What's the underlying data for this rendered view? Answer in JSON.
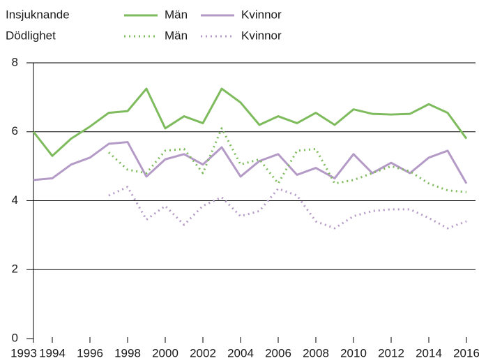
{
  "chart_data": {
    "type": "line",
    "legend_groups": [
      "Insjuknande",
      "Dödlighet"
    ],
    "x": [
      1993,
      1994,
      1995,
      1996,
      1997,
      1998,
      1999,
      2000,
      2001,
      2002,
      2003,
      2004,
      2005,
      2006,
      2007,
      2008,
      2009,
      2010,
      2011,
      2012,
      2013,
      2014,
      2015,
      2016
    ],
    "series": [
      {
        "name": "Män",
        "color": "#7dbb5c",
        "style": "solid",
        "values": [
          6.0,
          5.3,
          5.8,
          6.15,
          6.55,
          6.6,
          7.25,
          6.1,
          6.45,
          6.25,
          7.25,
          6.85,
          6.2,
          6.45,
          6.25,
          6.55,
          6.2,
          6.65,
          6.52,
          6.5,
          6.52,
          6.8,
          6.55,
          5.8
        ]
      },
      {
        "name": "Kvinnor",
        "color": "#b49ac6",
        "style": "solid",
        "values": [
          4.6,
          4.65,
          5.05,
          5.25,
          5.65,
          5.7,
          4.7,
          5.2,
          5.35,
          5.05,
          5.55,
          4.7,
          5.15,
          5.35,
          4.75,
          4.95,
          4.65,
          5.35,
          4.8,
          5.1,
          4.8,
          5.25,
          5.45,
          4.5
        ]
      },
      {
        "name": "Män",
        "color": "#7dbb5c",
        "style": "dotted",
        "values": [
          null,
          null,
          null,
          null,
          5.4,
          4.9,
          4.8,
          5.45,
          5.5,
          4.8,
          6.1,
          5.05,
          5.2,
          4.5,
          5.45,
          5.5,
          4.5,
          4.6,
          4.8,
          5.0,
          4.85,
          4.5,
          4.3,
          4.25
        ]
      },
      {
        "name": "Kvinnor",
        "color": "#b49ac6",
        "style": "dotted",
        "values": [
          null,
          null,
          null,
          null,
          4.15,
          4.4,
          3.45,
          3.85,
          3.3,
          3.85,
          4.1,
          3.55,
          3.7,
          4.35,
          4.15,
          3.4,
          3.2,
          3.55,
          3.7,
          3.75,
          3.75,
          3.5,
          3.2,
          3.4
        ]
      }
    ],
    "xlim": [
      1993,
      2016
    ],
    "xticks": [
      1993,
      1994,
      1996,
      1998,
      2000,
      2002,
      2004,
      2006,
      2008,
      2010,
      2012,
      2014,
      2016
    ],
    "ylim": [
      0,
      8
    ],
    "yticks": [
      0,
      2,
      4,
      6,
      8
    ],
    "grid": true
  }
}
